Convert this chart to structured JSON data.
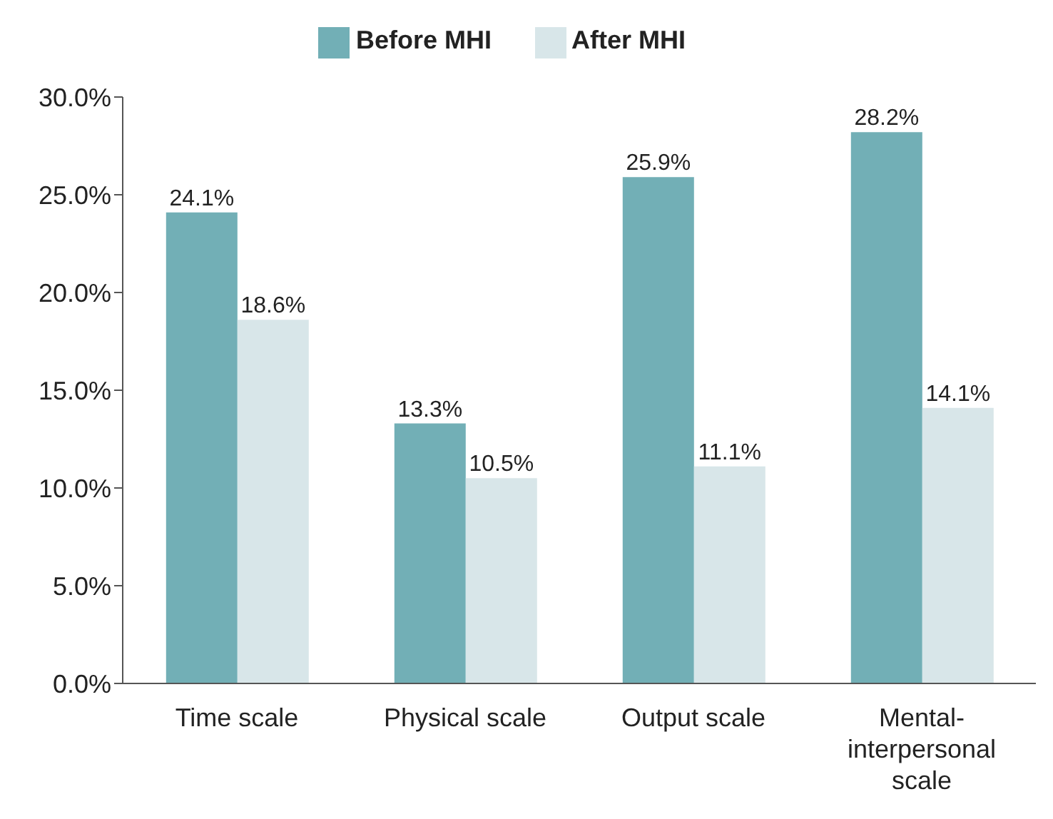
{
  "chart_data": {
    "type": "bar",
    "categories": [
      "Time scale",
      "Physical scale",
      "Output scale",
      "Mental-interpersonal scale"
    ],
    "series": [
      {
        "name": "Before MHI",
        "color": "#72afb6",
        "values": [
          24.1,
          13.3,
          25.9,
          28.2
        ],
        "value_labels": [
          "24.1%",
          "13.3%",
          "25.9%",
          "28.2%"
        ]
      },
      {
        "name": "After MHI",
        "color": "#d8e6e9",
        "values": [
          18.6,
          10.5,
          11.1,
          14.1
        ],
        "value_labels": [
          "18.6%",
          "10.5%",
          "11.1%",
          "14.1%"
        ]
      }
    ],
    "ylim": [
      0,
      30
    ],
    "yticks": [
      {
        "value": 0,
        "label": "0.0%"
      },
      {
        "value": 5,
        "label": "5.0%"
      },
      {
        "value": 10,
        "label": "10.0%"
      },
      {
        "value": 15,
        "label": "15.0%"
      },
      {
        "value": 20,
        "label": "20.0%"
      },
      {
        "value": 25,
        "label": "25.0%"
      },
      {
        "value": 30,
        "label": "30.0%"
      }
    ],
    "grid": false,
    "legend": "top"
  }
}
